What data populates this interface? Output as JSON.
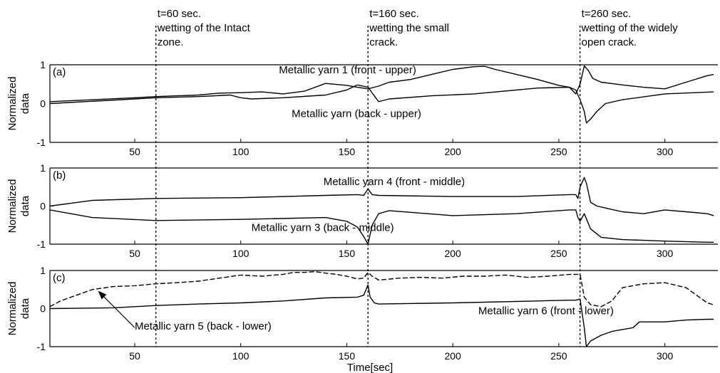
{
  "chart_data": {
    "type": "line",
    "xlabel": "Time[sec]",
    "xlim": [
      10,
      325
    ],
    "ylim": [
      -1,
      1
    ],
    "xticks": [
      50,
      100,
      150,
      200,
      250,
      300
    ],
    "yticks": [
      -1,
      0,
      1
    ],
    "ylabel_lines": [
      "Normalized",
      "data"
    ],
    "events": [
      {
        "x": 60,
        "lines": [
          "t=60 sec.",
          "wetting of the Intact",
          "zone."
        ]
      },
      {
        "x": 160,
        "lines": [
          "t=160 sec.",
          "wetting the small",
          "crack."
        ]
      },
      {
        "x": 260,
        "lines": [
          "t=260 sec.",
          "wetting of the widely",
          "open crack."
        ]
      }
    ],
    "panels": [
      {
        "tag": "(a)",
        "series": [
          {
            "name": "Metallic yarn 1 (front - upper)",
            "dash": false,
            "x": [
              10,
              30,
              50,
              60,
              70,
              80,
              90,
              100,
              110,
              120,
              130,
              140,
              150,
              155,
              160,
              165,
              170,
              180,
              190,
              200,
              210,
              215,
              220,
              230,
              240,
              250,
              255,
              258,
              260,
              262,
              264,
              266,
              270,
              280,
              290,
              300,
              310,
              320,
              323
            ],
            "y": [
              0.05,
              0.1,
              0.15,
              0.18,
              0.2,
              0.22,
              0.27,
              0.28,
              0.3,
              0.25,
              0.32,
              0.52,
              0.47,
              0.42,
              0.38,
              0.45,
              0.55,
              0.62,
              0.75,
              0.88,
              0.95,
              0.96,
              0.88,
              0.75,
              0.62,
              0.47,
              0.42,
              0.25,
              0.5,
              0.97,
              0.85,
              0.65,
              0.55,
              0.48,
              0.42,
              0.38,
              0.55,
              0.72,
              0.75
            ]
          },
          {
            "name": "Metallic yarn (back - upper)",
            "dash": false,
            "x": [
              10,
              50,
              60,
              80,
              95,
              100,
              105,
              120,
              140,
              150,
              155,
              160,
              165,
              170,
              190,
              210,
              240,
              255,
              258,
              260,
              262,
              263,
              265,
              268,
              272,
              280,
              300,
              323
            ],
            "y": [
              0.0,
              0.12,
              0.15,
              0.18,
              0.22,
              0.15,
              0.12,
              0.15,
              0.22,
              0.35,
              0.48,
              0.42,
              0.05,
              0.12,
              0.2,
              0.25,
              0.4,
              0.42,
              0.35,
              0.1,
              -0.2,
              -0.5,
              -0.4,
              -0.2,
              0.0,
              0.1,
              0.25,
              0.3
            ]
          }
        ],
        "labels": [
          {
            "text": "Metallic yarn 1 (front - upper)",
            "x": 118,
            "y": 0.78
          },
          {
            "text": "Metallic yarn (back - upper)",
            "x": 124,
            "y": -0.35
          }
        ]
      },
      {
        "tag": "(b)",
        "series": [
          {
            "name": "Metallic yarn 4 (front - middle)",
            "dash": false,
            "x": [
              10,
              30,
              60,
              100,
              140,
              155,
              158,
              160,
              162,
              165,
              200,
              230,
              255,
              258,
              259,
              260,
              262,
              263,
              265,
              268,
              272,
              276,
              280,
              290,
              300,
              310,
              320,
              323
            ],
            "y": [
              0.0,
              0.15,
              0.2,
              0.22,
              0.28,
              0.3,
              0.28,
              0.45,
              0.3,
              0.28,
              0.25,
              0.25,
              0.3,
              0.3,
              0.2,
              0.5,
              0.75,
              0.6,
              0.1,
              0.0,
              -0.05,
              -0.1,
              -0.15,
              -0.2,
              -0.1,
              -0.15,
              -0.2,
              -0.25
            ]
          },
          {
            "name": "Metallic yarn 3 (back - middle)",
            "dash": false,
            "x": [
              10,
              30,
              60,
              100,
              140,
              150,
              155,
              158,
              160,
              162,
              165,
              170,
              200,
              230,
              250,
              255,
              258,
              259,
              260,
              262,
              265,
              270,
              280,
              290,
              300,
              320,
              323
            ],
            "y": [
              -0.1,
              -0.3,
              -0.38,
              -0.35,
              -0.3,
              -0.4,
              -0.55,
              -0.8,
              -1.0,
              -0.5,
              -0.2,
              -0.12,
              -0.25,
              -0.2,
              -0.12,
              -0.1,
              -0.1,
              -0.3,
              -0.4,
              -0.2,
              -0.6,
              -0.82,
              -0.88,
              -0.9,
              -0.92,
              -0.95,
              -0.95
            ]
          }
        ],
        "labels": [
          {
            "text": "Metallic yarn 4 (front - middle)",
            "x": 139,
            "y": 0.55
          },
          {
            "text": "Metallic yarn 3 (back - middle)",
            "x": 105,
            "y": -0.65
          }
        ]
      },
      {
        "tag": "(c)",
        "series": [
          {
            "name": "Metallic yarn 5 (back - lower)",
            "dash": true,
            "x": [
              10,
              15,
              20,
              25,
              30,
              40,
              50,
              60,
              70,
              80,
              90,
              100,
              110,
              120,
              125,
              130,
              135,
              140,
              145,
              150,
              155,
              158,
              160,
              162,
              165,
              175,
              185,
              195,
              205,
              215,
              225,
              235,
              245,
              255,
              258,
              260,
              262,
              265,
              270,
              275,
              280,
              290,
              300,
              310,
              315,
              320,
              323
            ],
            "y": [
              0.05,
              0.2,
              0.3,
              0.4,
              0.5,
              0.58,
              0.6,
              0.65,
              0.68,
              0.72,
              0.8,
              0.88,
              0.85,
              0.9,
              0.95,
              0.95,
              0.97,
              0.93,
              0.9,
              0.85,
              0.78,
              0.8,
              0.95,
              0.85,
              0.75,
              0.8,
              0.82,
              0.8,
              0.85,
              0.85,
              0.88,
              0.82,
              0.85,
              0.9,
              0.9,
              0.9,
              0.3,
              0.1,
              0.05,
              0.2,
              0.55,
              0.65,
              0.68,
              0.55,
              0.35,
              0.15,
              0.1
            ]
          },
          {
            "name": "Metallic yarn 6 (front - lower)",
            "dash": false,
            "x": [
              10,
              40,
              60,
              80,
              100,
              120,
              140,
              155,
              158,
              160,
              161,
              163,
              165,
              200,
              240,
              255,
              258,
              260,
              262,
              263,
              265,
              270,
              275,
              280,
              285,
              288,
              290,
              300,
              310,
              320,
              323
            ],
            "y": [
              0.0,
              0.02,
              0.08,
              0.12,
              0.15,
              0.2,
              0.28,
              0.3,
              0.35,
              0.62,
              0.3,
              0.15,
              0.12,
              0.15,
              0.2,
              0.22,
              0.22,
              0.25,
              -0.5,
              -1.0,
              -0.85,
              -0.7,
              -0.6,
              -0.55,
              -0.5,
              -0.35,
              -0.35,
              -0.35,
              -0.3,
              -0.28,
              -0.28
            ]
          }
        ],
        "labels": [
          {
            "text": "Metallic yarn 5 (back - lower)",
            "x": 50,
            "y": -0.55
          },
          {
            "text": "Metallic yarn 6 (front - lower)",
            "x": 212,
            "y": -0.15
          }
        ],
        "pointer": {
          "from": [
            50,
            -0.5
          ],
          "to": [
            33,
            0.45
          ]
        }
      }
    ]
  }
}
